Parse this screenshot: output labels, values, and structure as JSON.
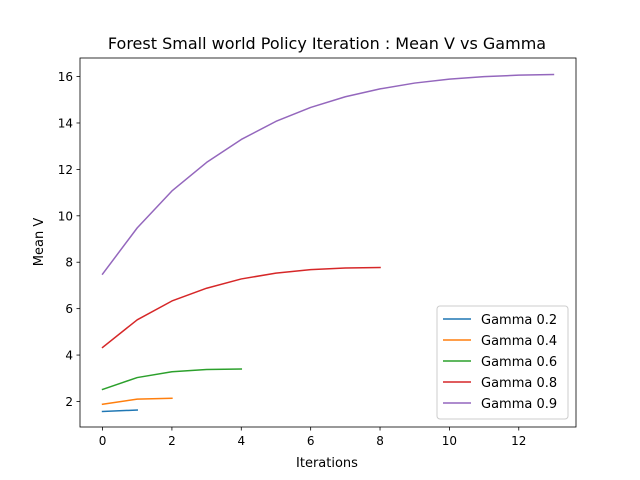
{
  "chart_data": {
    "type": "line",
    "title": "Forest Small world Policy Iteration : Mean V vs Gamma",
    "xlabel": "Iterations",
    "ylabel": "Mean V",
    "xlim": [
      -0.65,
      13.65
    ],
    "ylim": [
      0.9,
      16.8
    ],
    "xticks": [
      0,
      2,
      4,
      6,
      8,
      10,
      12
    ],
    "yticks": [
      2,
      4,
      6,
      8,
      10,
      12,
      14,
      16
    ],
    "grid": false,
    "legend_position": "lower right",
    "series": [
      {
        "name": "Gamma 0.2",
        "color": "#1f77b4",
        "x": [
          0,
          1
        ],
        "values": [
          1.57,
          1.63
        ]
      },
      {
        "name": "Gamma 0.4",
        "color": "#ff7f0e",
        "x": [
          0,
          1,
          2
        ],
        "values": [
          1.88,
          2.1,
          2.14
        ]
      },
      {
        "name": "Gamma 0.6",
        "color": "#2ca02c",
        "x": [
          0,
          1,
          2,
          3,
          4
        ],
        "values": [
          2.52,
          3.03,
          3.28,
          3.38,
          3.4
        ]
      },
      {
        "name": "Gamma 0.8",
        "color": "#d62728",
        "x": [
          0,
          1,
          2,
          3,
          4,
          5,
          6,
          7,
          8
        ],
        "values": [
          4.33,
          5.52,
          6.33,
          6.88,
          7.28,
          7.53,
          7.68,
          7.75,
          7.77
        ]
      },
      {
        "name": "Gamma 0.9",
        "color": "#9467bd",
        "x": [
          0,
          1,
          2,
          3,
          4,
          5,
          6,
          7,
          8,
          9,
          10,
          11,
          12,
          13
        ],
        "values": [
          7.49,
          9.48,
          11.07,
          12.3,
          13.29,
          14.07,
          14.67,
          15.13,
          15.47,
          15.72,
          15.89,
          16.0,
          16.06,
          16.09
        ]
      }
    ]
  }
}
